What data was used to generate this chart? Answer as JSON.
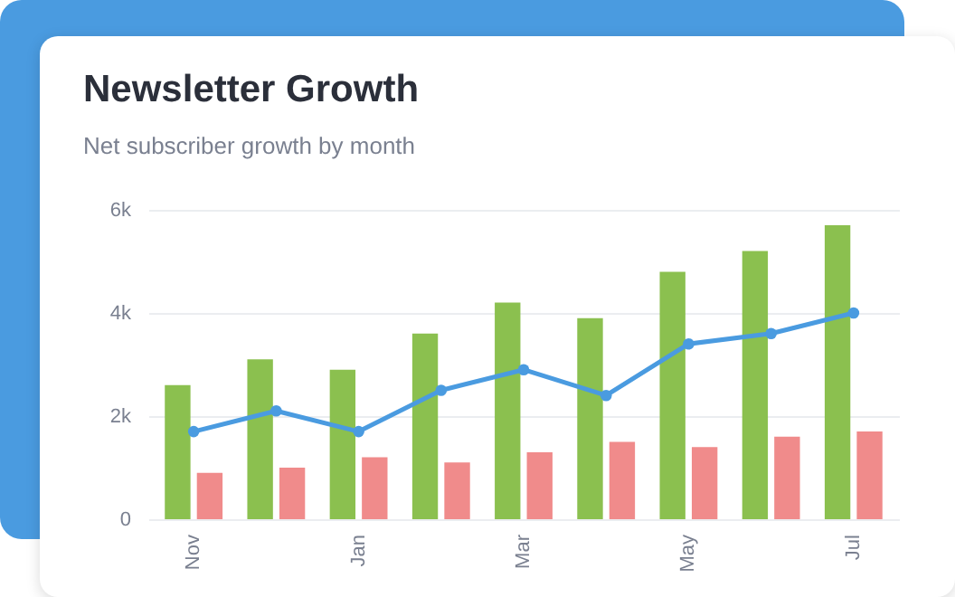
{
  "chart_data": {
    "type": "bar",
    "title": "Newsletter Growth",
    "subtitle": "Net subscriber growth by month",
    "categories": [
      "Nov",
      null,
      "Jan",
      null,
      "Mar",
      null,
      "May",
      null,
      "Jul"
    ],
    "series": [
      {
        "color": "#8bc04f",
        "values": [
          2600,
          3100,
          2900,
          3600,
          4200,
          3900,
          4800,
          5200,
          5700
        ]
      },
      {
        "color": "#f08b8b",
        "values": [
          900,
          1000,
          1200,
          1100,
          1300,
          1500,
          1400,
          1600,
          1700
        ]
      },
      {
        "type": "line",
        "color": "#4a9be0",
        "marker": "circle",
        "values": [
          1700,
          2100,
          1700,
          2500,
          2900,
          2400,
          3400,
          3600,
          4000
        ]
      }
    ],
    "ylim": [
      0,
      6000
    ],
    "yticks": [
      0,
      {
        "value": 2000,
        "label": "2k"
      },
      {
        "value": 4000,
        "label": "4k"
      },
      {
        "value": 6000,
        "label": "6k"
      }
    ],
    "grid": "y",
    "legend": false
  }
}
